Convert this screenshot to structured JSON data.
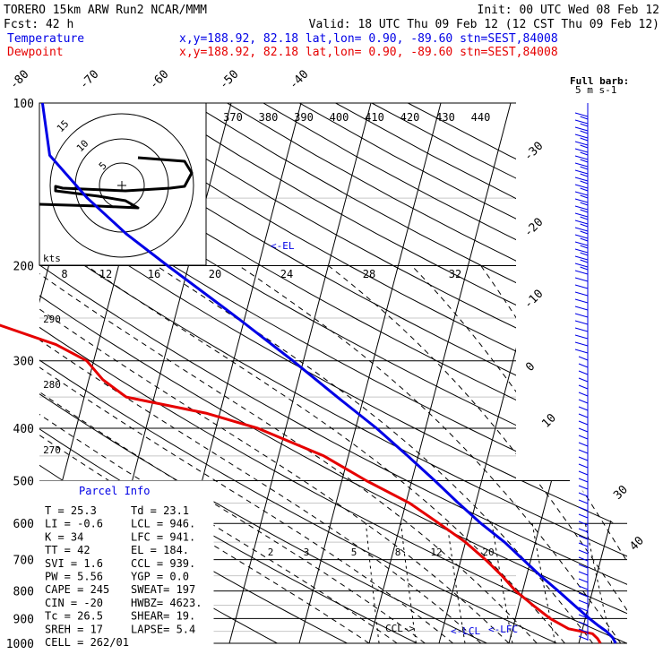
{
  "header": {
    "line1_left": "TORERO  15km ARW   Run2    NCAR/MMM",
    "line1_right": "Init: 00 UTC Wed 08 Feb 12",
    "line2_left": "Fcst:   42 h",
    "line2_right": "Valid: 18 UTC Thu 09 Feb 12 (12 CST Thu 09 Feb 12)",
    "temp_label": "Temperature",
    "temp_info": "x,y=188.92, 82.18   lat,lon=  0.90, -89.60  stn=SEST,84008",
    "dew_label": "Dewpoint",
    "dew_info": "x,y=188.92, 82.18   lat,lon=  0.90, -89.60  stn=SEST,84008"
  },
  "colors": {
    "temperature": "#0000e6",
    "dewpoint": "#e60000",
    "lines": "#000000"
  },
  "chart_data": {
    "type": "line",
    "title": "",
    "pressure_levels": [
      "100",
      "200",
      "300",
      "400",
      "500",
      "600",
      "700",
      "800",
      "900",
      "1000"
    ],
    "pressure_values": [
      100,
      200,
      300,
      400,
      500,
      600,
      700,
      800,
      900,
      1000
    ],
    "top_temp_ticks": [
      "-80",
      "-70",
      "-60",
      "-50",
      "-40"
    ],
    "top_temp_values": [
      -80,
      -70,
      -60,
      -50,
      -40
    ],
    "right_temp_ticks": [
      "-30",
      "-20",
      "-10",
      "0",
      "10",
      "30",
      "40"
    ],
    "right_temp_values": [
      -30,
      -20,
      -10,
      0,
      10,
      30,
      40
    ],
    "theta_e_labels": [
      "370",
      "380",
      "390",
      "400",
      "410",
      "420",
      "430",
      "440"
    ],
    "dry_adiabat_labels": [
      "290",
      "280",
      "270"
    ],
    "mixing_ratio_labels_top": [
      "8",
      "12",
      "16",
      "20",
      "24",
      "28",
      "32"
    ],
    "mixing_ratio_labels_bottom": [
      "2",
      "3",
      "5",
      "8",
      "12",
      "20"
    ],
    "hodograph": {
      "rings": [
        "5",
        "10",
        "15"
      ],
      "units_label": "kts"
    },
    "el_label": "<-EL",
    "level_labels": {
      "ccl": "CCL->",
      "lcl": "<-LCL",
      "lfc": "<-LFC"
    },
    "barb_header": {
      "title": "Full barb:",
      "units": "5 m s-1"
    },
    "series": [
      {
        "name": "Temperature",
        "points": [
          [
            1000,
            25.3
          ],
          [
            975,
            24.6
          ],
          [
            950,
            23.5
          ],
          [
            925,
            22.0
          ],
          [
            900,
            20.6
          ],
          [
            850,
            17.9
          ],
          [
            800,
            15.1
          ],
          [
            750,
            12.0
          ],
          [
            700,
            8.9
          ],
          [
            650,
            5.6
          ],
          [
            600,
            1.5
          ],
          [
            550,
            -2.5
          ],
          [
            500,
            -6.7
          ],
          [
            450,
            -11.5
          ],
          [
            400,
            -17.0
          ],
          [
            350,
            -23.8
          ],
          [
            300,
            -31.5
          ],
          [
            250,
            -41.0
          ],
          [
            200,
            -53.0
          ],
          [
            175,
            -60.0
          ],
          [
            150,
            -67.0
          ],
          [
            125,
            -74.0
          ],
          [
            100,
            -77.0
          ]
        ]
      },
      {
        "name": "Dewpoint",
        "points": [
          [
            1000,
            23.1
          ],
          [
            980,
            22.5
          ],
          [
            960,
            21.6
          ],
          [
            940,
            18.0
          ],
          [
            900,
            15.0
          ],
          [
            850,
            12.0
          ],
          [
            800,
            9.0
          ],
          [
            750,
            6.5
          ],
          [
            700,
            3.5
          ],
          [
            650,
            0.0
          ],
          [
            600,
            -4.5
          ],
          [
            550,
            -9.5
          ],
          [
            500,
            -16.5
          ],
          [
            450,
            -23.5
          ],
          [
            400,
            -34.0
          ],
          [
            375,
            -42.0
          ],
          [
            350,
            -54.0
          ],
          [
            325,
            -58.0
          ],
          [
            300,
            -61.0
          ],
          [
            280,
            -66.0
          ],
          [
            250,
            -78.0
          ],
          [
            225,
            -83.0
          ],
          [
            200,
            -91.0
          ],
          [
            175,
            -95.0
          ],
          [
            150,
            -95.5
          ],
          [
            125,
            -96.0
          ],
          [
            100,
            -98.0
          ]
        ]
      }
    ]
  },
  "parcel_info": {
    "title": "Parcel Info",
    "rows": [
      [
        "T  =     25.3",
        "Td =   23.1"
      ],
      [
        "LI =     -0.6",
        "LCL =  946."
      ],
      [
        "K  =       34",
        "LFC =  941."
      ],
      [
        "TT =       42",
        "EL  =  184."
      ],
      [
        "SVI =     1.6",
        "CCL =  939."
      ],
      [
        "PW =     5.56",
        "YGP =   0.0"
      ],
      [
        "CAPE =    245",
        "SWEAT=  197"
      ],
      [
        "CIN =     -20",
        "HWBZ= 4623."
      ],
      [
        "Tc =     26.5",
        "SHEAR=  19."
      ],
      [
        "SREH =     17",
        "LAPSE=  5.4"
      ],
      [
        "CELL = 262/01",
        ""
      ]
    ]
  }
}
